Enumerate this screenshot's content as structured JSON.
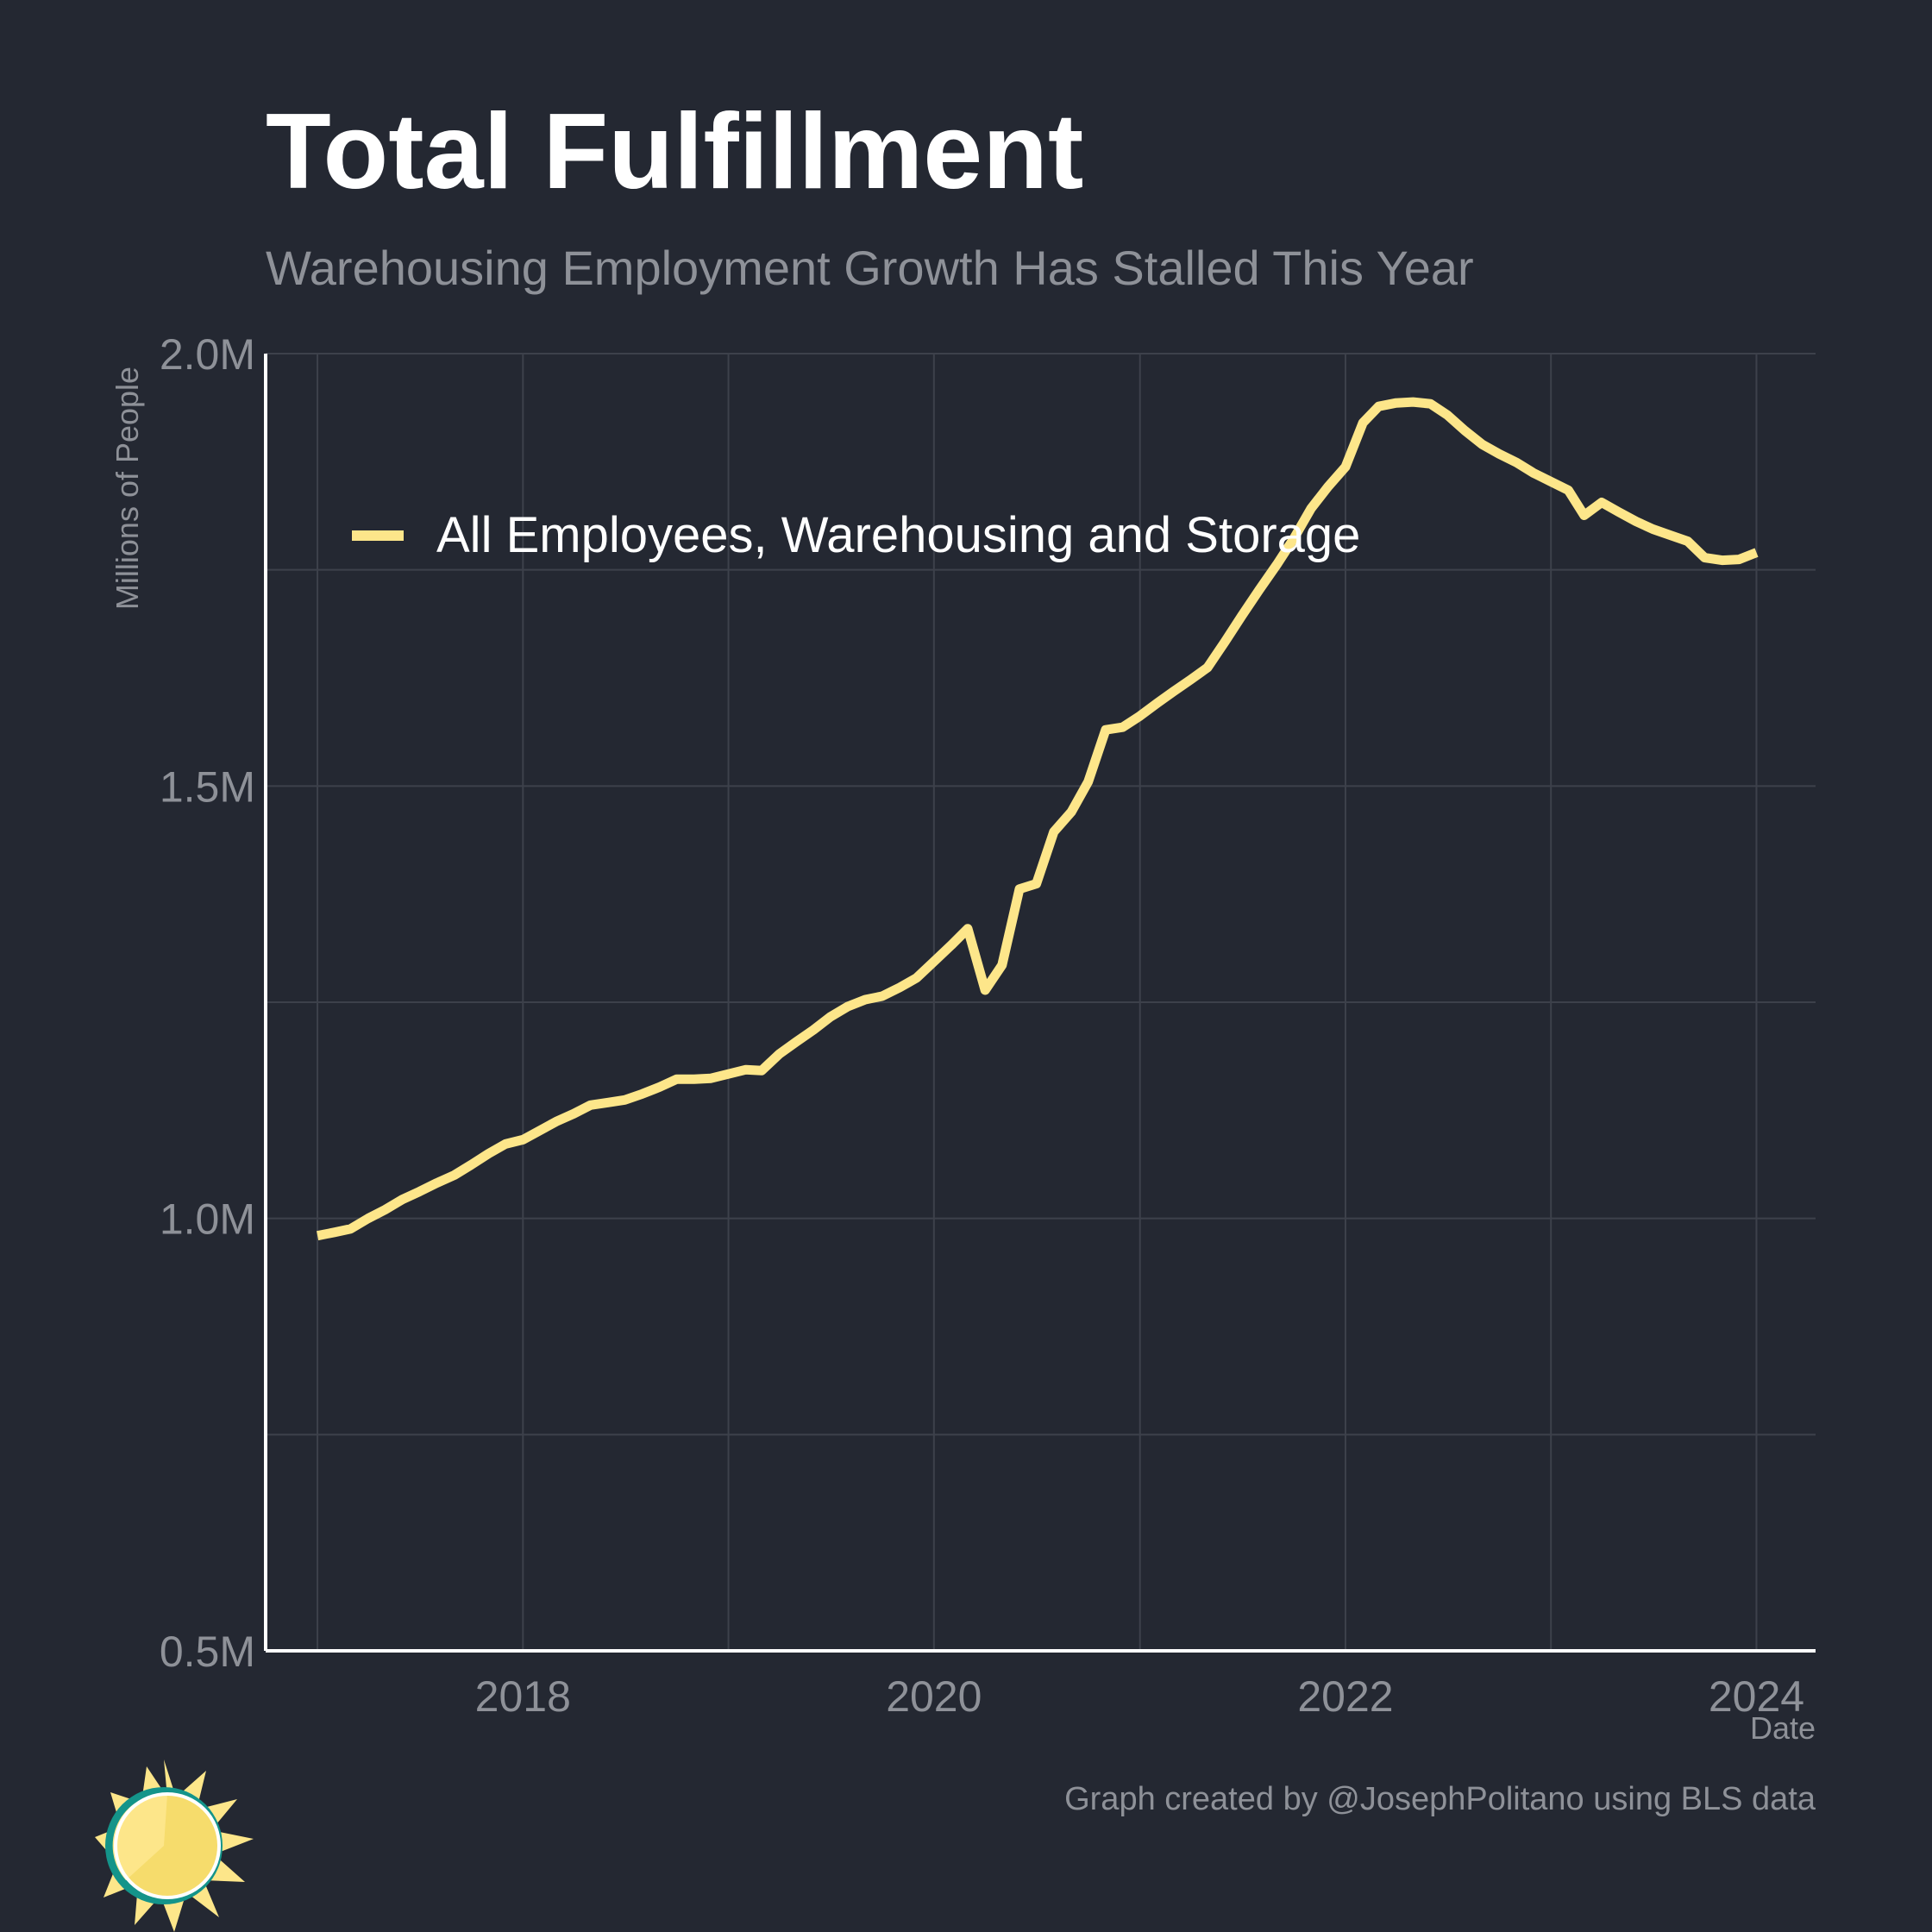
{
  "title": "Total Fulfillment",
  "subtitle": "Warehousing Employment Growth Has Stalled This Year",
  "ylabel": "Millions of People",
  "xlabel": "Date",
  "credit": "Graph created by @JosephPolitano using BLS data",
  "colors": {
    "background": "#242832",
    "line": "#fde68a",
    "grid": "#3d414b",
    "axis": "#ffffff",
    "muted": "#8e9198"
  },
  "logo_icon": "sun-icon",
  "chart_data": {
    "type": "line",
    "title": "Total Fulfillment",
    "subtitle": "Warehousing Employment Growth Has Stalled This Year",
    "xlabel": "Date",
    "ylabel": "Millions of People",
    "xlim": [
      "2016-10-01",
      "2024-04-15"
    ],
    "ylim": [
      0.5,
      2.0
    ],
    "yticks": [
      0.5,
      1.0,
      1.5,
      2.0
    ],
    "ytick_labels": [
      "0.5M",
      "1.0M",
      "1.5M",
      "2.0M"
    ],
    "xticks": [
      "2018-01-01",
      "2020-01-01",
      "2022-01-01",
      "2024-01-01"
    ],
    "xtick_labels": [
      "2018",
      "2020",
      "2022",
      "2024"
    ],
    "grid": true,
    "legend": "top-left",
    "series": [
      {
        "name": "All Employees, Warehousing and Storage",
        "x": [
          "2017-01-01",
          "2017-02-01",
          "2017-03-01",
          "2017-04-01",
          "2017-05-01",
          "2017-06-01",
          "2017-07-01",
          "2017-08-01",
          "2017-09-01",
          "2017-10-01",
          "2017-11-01",
          "2017-12-01",
          "2018-01-01",
          "2018-02-01",
          "2018-03-01",
          "2018-04-01",
          "2018-05-01",
          "2018-06-01",
          "2018-07-01",
          "2018-08-01",
          "2018-09-01",
          "2018-10-01",
          "2018-11-01",
          "2018-12-01",
          "2019-01-01",
          "2019-02-01",
          "2019-03-01",
          "2019-04-01",
          "2019-05-01",
          "2019-06-01",
          "2019-07-01",
          "2019-08-01",
          "2019-09-01",
          "2019-10-01",
          "2019-11-01",
          "2019-12-01",
          "2020-01-01",
          "2020-02-01",
          "2020-03-01",
          "2020-04-01",
          "2020-05-01",
          "2020-06-01",
          "2020-07-01",
          "2020-08-01",
          "2020-09-01",
          "2020-10-01",
          "2020-11-01",
          "2020-12-01",
          "2021-01-01",
          "2021-02-01",
          "2021-03-01",
          "2021-04-01",
          "2021-05-01",
          "2021-06-01",
          "2021-07-01",
          "2021-08-01",
          "2021-09-01",
          "2021-10-01",
          "2021-11-01",
          "2021-12-01",
          "2022-01-01",
          "2022-02-01",
          "2022-03-01",
          "2022-04-01",
          "2022-05-01",
          "2022-06-01",
          "2022-07-01",
          "2022-08-01",
          "2022-09-01",
          "2022-10-01",
          "2022-11-01",
          "2022-12-01",
          "2023-01-01",
          "2023-02-01",
          "2023-03-01",
          "2023-04-01",
          "2023-05-01",
          "2023-06-01",
          "2023-07-01",
          "2023-08-01",
          "2023-09-01",
          "2023-10-01",
          "2023-11-01",
          "2023-12-01",
          "2024-01-01"
        ],
        "values": [
          0.98,
          0.984,
          0.988,
          1.0,
          1.01,
          1.022,
          1.031,
          1.041,
          1.05,
          1.062,
          1.075,
          1.086,
          1.091,
          1.102,
          1.112,
          1.121,
          1.131,
          1.134,
          1.137,
          1.144,
          1.152,
          1.161,
          1.161,
          1.162,
          1.167,
          1.172,
          1.171,
          1.19,
          1.204,
          1.218,
          1.233,
          1.245,
          1.253,
          1.257,
          1.267,
          1.278,
          1.297,
          1.316,
          1.335,
          1.264,
          1.293,
          1.381,
          1.387,
          1.447,
          1.47,
          1.505,
          1.565,
          1.568,
          1.581,
          1.596,
          1.609,
          1.623,
          1.637,
          1.667,
          1.697,
          1.727,
          1.756,
          1.786,
          1.821,
          1.846,
          1.869,
          1.92,
          1.939,
          1.943,
          1.944,
          1.942,
          1.929,
          1.911,
          1.895,
          1.884,
          1.874,
          1.862,
          1.852,
          1.842,
          1.813,
          1.828,
          1.817,
          1.806,
          1.797,
          1.79,
          1.783,
          1.764,
          1.761,
          1.762,
          1.77
        ]
      }
    ]
  }
}
